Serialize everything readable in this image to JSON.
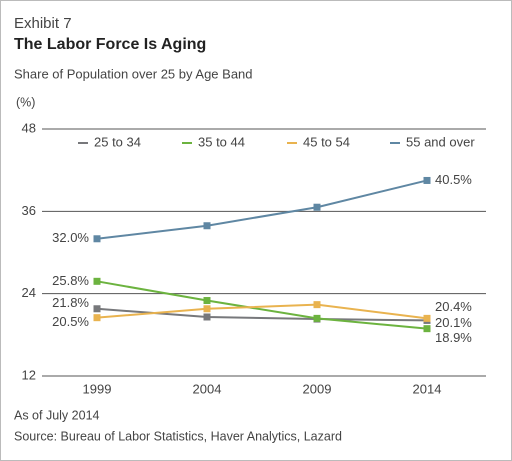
{
  "chart_data": {
    "type": "line",
    "exhibit": "Exhibit 7",
    "title": "The Labor Force Is Aging",
    "subtitle": "Share of Population over 25 by Age Band",
    "y_label": "(%)",
    "categories": [
      "1999",
      "2004",
      "2009",
      "2014"
    ],
    "series": [
      {
        "name": "25 to 34",
        "color": "#77787b",
        "values": [
          21.8,
          20.6,
          20.3,
          20.1
        ],
        "value_labels": [
          "21.8%",
          null,
          null,
          "20.1%"
        ]
      },
      {
        "name": "35 to 44",
        "color": "#6cb33f",
        "values": [
          25.8,
          23.0,
          20.4,
          18.9
        ],
        "value_labels": [
          "25.8%",
          null,
          null,
          "18.9%"
        ]
      },
      {
        "name": "45 to 54",
        "color": "#e9b34f",
        "values": [
          20.5,
          21.8,
          22.4,
          20.4
        ],
        "value_labels": [
          "20.5%",
          null,
          null,
          "20.4%"
        ]
      },
      {
        "name": "55 and over",
        "color": "#5f87a3",
        "values": [
          32.0,
          33.9,
          36.6,
          40.5
        ],
        "value_labels": [
          "32.0%",
          null,
          null,
          "40.5%"
        ]
      }
    ],
    "ylim": [
      12,
      48
    ],
    "yticks": [
      12,
      24,
      36,
      48
    ],
    "grid": true,
    "legend": "top",
    "notes": [
      "As of July 2014",
      "Source: Bureau of Labor Statistics, Haver Analytics, Lazard"
    ]
  }
}
